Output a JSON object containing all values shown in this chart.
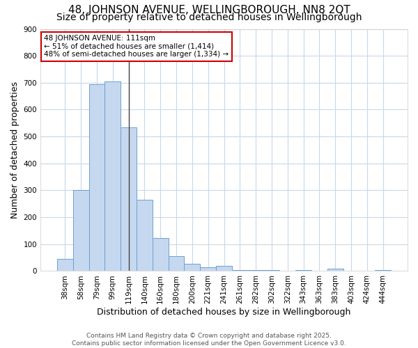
{
  "title1": "48, JOHNSON AVENUE, WELLINGBOROUGH, NN8 2QT",
  "title2": "Size of property relative to detached houses in Wellingborough",
  "xlabel": "Distribution of detached houses by size in Wellingborough",
  "ylabel": "Number of detached properties",
  "categories": [
    "38sqm",
    "58sqm",
    "79sqm",
    "99sqm",
    "119sqm",
    "140sqm",
    "160sqm",
    "180sqm",
    "200sqm",
    "221sqm",
    "241sqm",
    "261sqm",
    "282sqm",
    "302sqm",
    "322sqm",
    "343sqm",
    "363sqm",
    "383sqm",
    "403sqm",
    "424sqm",
    "444sqm"
  ],
  "values": [
    45,
    300,
    695,
    705,
    535,
    265,
    122,
    55,
    27,
    15,
    18,
    5,
    5,
    5,
    0,
    5,
    0,
    8,
    0,
    0,
    5
  ],
  "bar_color": "#c5d8f0",
  "bar_edge_color": "#6ca0d0",
  "vline_x": 4.0,
  "vline_color": "#444444",
  "annotation_line1": "48 JOHNSON AVENUE: 111sqm",
  "annotation_line2": "← 51% of detached houses are smaller (1,414)",
  "annotation_line3": "48% of semi-detached houses are larger (1,334) →",
  "annotation_box_color": "#ffffff",
  "annotation_border_color": "#cc0000",
  "ylim": [
    0,
    900
  ],
  "yticks": [
    0,
    100,
    200,
    300,
    400,
    500,
    600,
    700,
    800,
    900
  ],
  "plot_bg_color": "#ffffff",
  "fig_bg_color": "#ffffff",
  "grid_color": "#c8d8e8",
  "footer": "Contains HM Land Registry data © Crown copyright and database right 2025.\nContains public sector information licensed under the Open Government Licence v3.0.",
  "title1_fontsize": 11,
  "title2_fontsize": 10,
  "xlabel_fontsize": 9,
  "ylabel_fontsize": 9,
  "tick_fontsize": 7.5,
  "footer_fontsize": 6.5,
  "annot_fontsize": 7.5
}
